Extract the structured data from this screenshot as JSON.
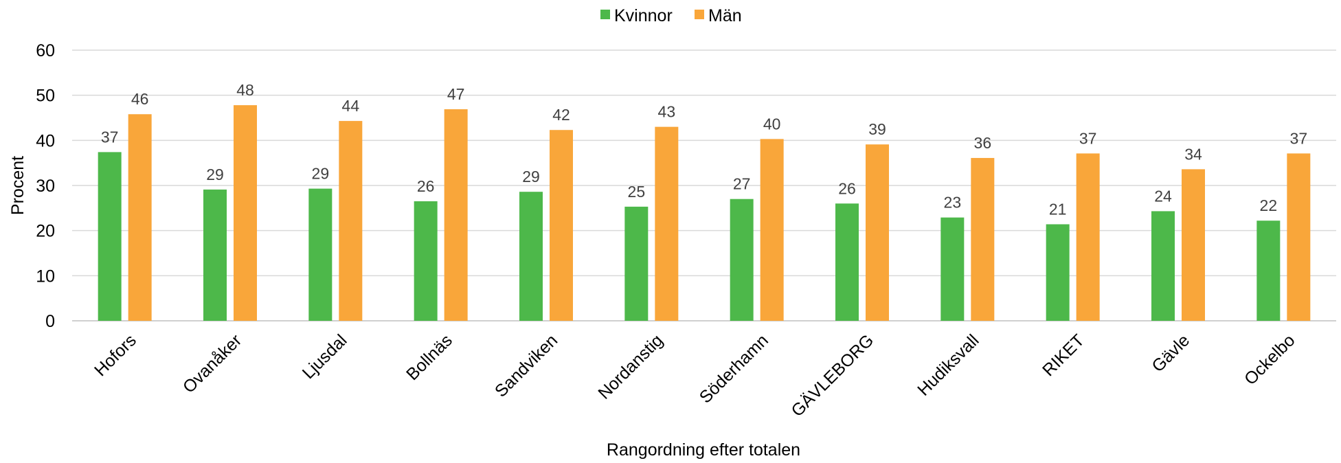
{
  "chart_data": {
    "type": "bar",
    "categories": [
      "Hofors",
      "Ovanåker",
      "Ljusdal",
      "Bollnäs",
      "Sandviken",
      "Nordanstig",
      "Söderhamn",
      "GÄVLEBORG",
      "Hudiksvall",
      "RIKET",
      "Gävle",
      "Ockelbo"
    ],
    "series": [
      {
        "name": "Kvinnor",
        "color": "#4db84a",
        "values": [
          37.4,
          29.1,
          29.3,
          26.5,
          28.6,
          25.3,
          27.0,
          26.0,
          22.9,
          21.4,
          24.3,
          22.2
        ],
        "labels": [
          "37",
          "29",
          "29",
          "26",
          "29",
          "25",
          "27",
          "26",
          "23",
          "21",
          "24",
          "22"
        ]
      },
      {
        "name": "Män",
        "color": "#f9a63a",
        "values": [
          45.8,
          47.8,
          44.3,
          46.9,
          42.3,
          43.0,
          40.3,
          39.1,
          36.1,
          37.1,
          33.6,
          37.1
        ],
        "labels": [
          "46",
          "48",
          "44",
          "47",
          "42",
          "43",
          "40",
          "39",
          "36",
          "37",
          "34",
          "37"
        ]
      }
    ],
    "title": "",
    "xlabel": "Rangordning efter totalen",
    "ylabel": "Procent",
    "ylim": [
      0,
      60
    ],
    "yticks": [
      0,
      10,
      20,
      30,
      40,
      50,
      60
    ],
    "grid": true,
    "legend_position": "top-center"
  }
}
